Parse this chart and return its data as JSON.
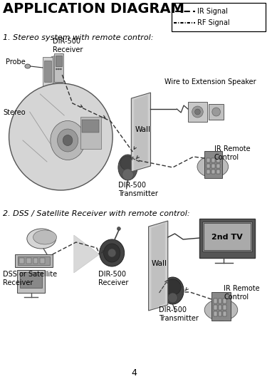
{
  "title": "APPLICATION DIAGRAM",
  "subtitle1": "1. Stereo system with remote control:",
  "subtitle2": "2. DSS / Satellite Receiver with remote control:",
  "legend_ir": "IR Signal",
  "legend_rf": "RF Signal",
  "page_number": "4",
  "bg_color": "#ffffff",
  "text_color": "#000000",
  "diag1": {
    "receiver_label": "DIR-500\nReceiver",
    "probe_label": "Probe",
    "stereo_label": "Stereo",
    "wall_label": "Wall",
    "wire_label": "Wire to Extension Speaker",
    "tx_label": "DIR-500\nTransmitter",
    "ir_label": "IR Remote\nControl"
  },
  "diag2": {
    "dss_label": "DSS or Satellite\nReceiver",
    "wall_label": "Wall",
    "tv_label": "2nd TV",
    "rx_label": "DIR-500\nReceiver",
    "tx_label": "DIR-500\nTransmitter",
    "ir_label": "IR Remote\nControl"
  }
}
